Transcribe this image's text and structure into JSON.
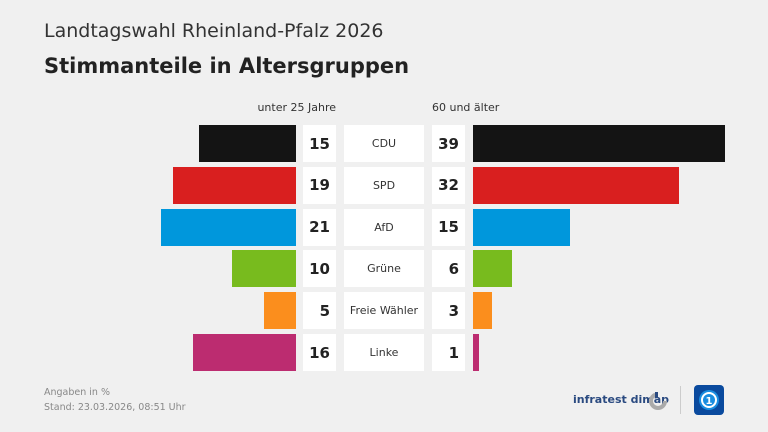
{
  "header": {
    "supertitle": "Landtagswahl Rheinland-Pfalz 2026",
    "title": "Stimmanteile in Altersgruppen"
  },
  "chart_data": {
    "type": "bar",
    "subtype": "butterfly",
    "title": "Stimmanteile in Altersgruppen",
    "categories": [
      "CDU",
      "SPD",
      "AfD",
      "Grüne",
      "Freie Wähler",
      "Linke"
    ],
    "series": [
      {
        "name": "unter 25 Jahre",
        "values": [
          15,
          19,
          21,
          10,
          5,
          16
        ]
      },
      {
        "name": "60 und älter",
        "values": [
          39,
          32,
          15,
          6,
          3,
          1
        ]
      }
    ],
    "colors": [
      "#141414",
      "#d91f1f",
      "#0097dc",
      "#78bb1e",
      "#fb8e1d",
      "#bc2c70"
    ],
    "unit": "%"
  },
  "footer": {
    "note": "Angaben in %",
    "stand": "Stand:  23.03.2026, 08:51 Uhr",
    "brand": "infratest dimap"
  }
}
